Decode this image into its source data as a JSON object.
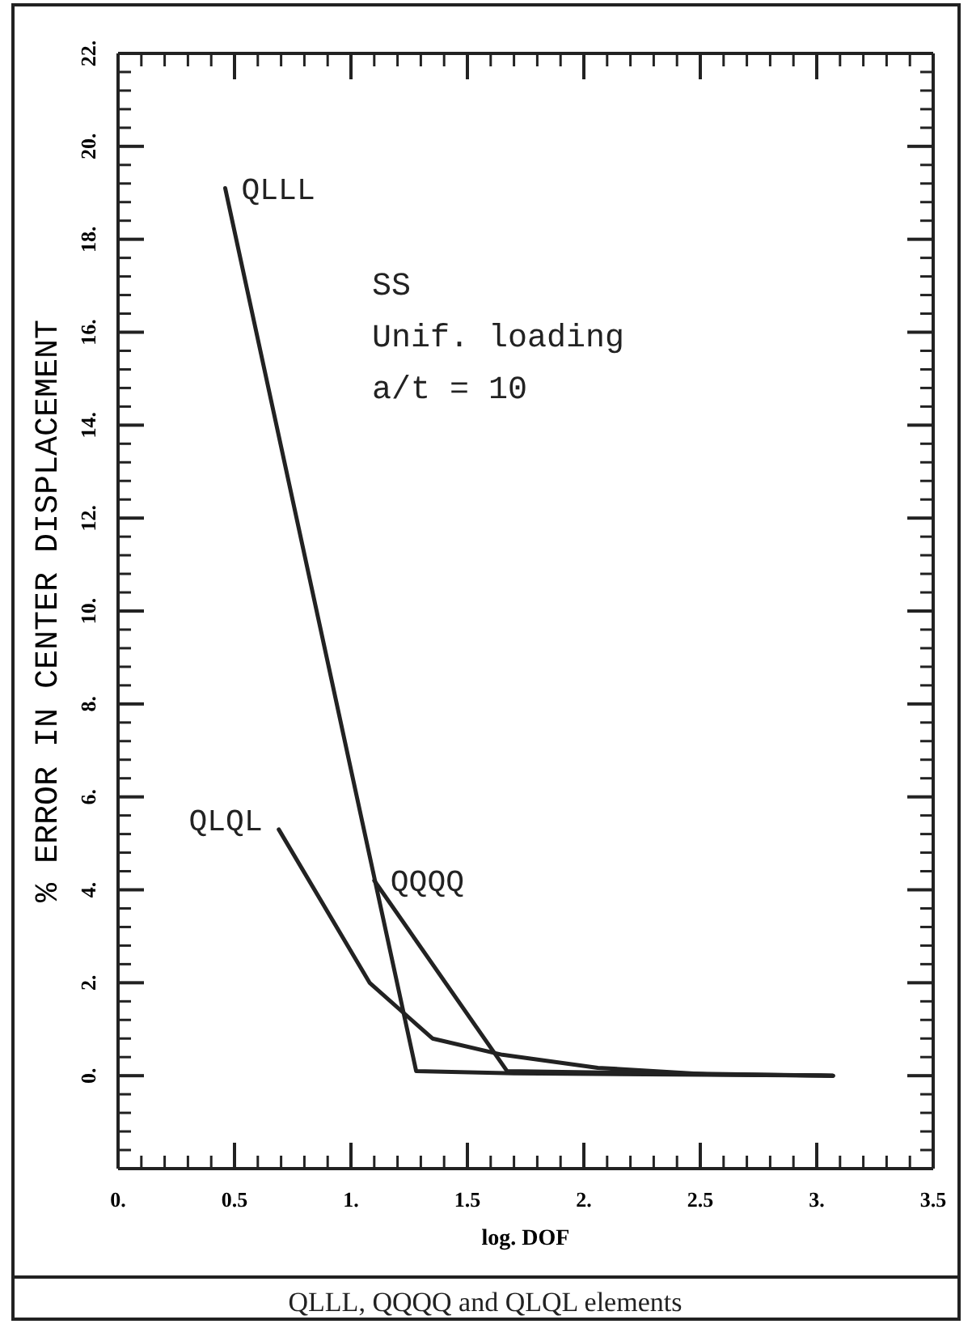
{
  "chart_data": {
    "type": "line",
    "xlabel": "log. DOF",
    "ylabel": "% ERROR IN CENTER DISPLACEMENT",
    "xlim": [
      0,
      3.5
    ],
    "ylim": [
      -2,
      22
    ],
    "xticks": [
      {
        "value": 0,
        "label": "0."
      },
      {
        "value": 0.1,
        "label": null
      },
      {
        "value": 0.2,
        "label": null
      },
      {
        "value": 0.3,
        "label": null
      },
      {
        "value": 0.4,
        "label": null
      },
      0.5,
      {
        "value": 0.6,
        "label": null
      },
      {
        "value": 0.7,
        "label": null
      },
      {
        "value": 0.8,
        "label": null
      },
      {
        "value": 0.9,
        "label": null
      },
      {
        "value": 1,
        "label": "1."
      },
      {
        "value": 1.1,
        "label": null
      },
      {
        "value": 1.2,
        "label": null
      },
      {
        "value": 1.3,
        "label": null
      },
      {
        "value": 1.4,
        "label": null
      },
      1.5,
      {
        "value": 1.6,
        "label": null
      },
      {
        "value": 1.7,
        "label": null
      },
      {
        "value": 1.8,
        "label": null
      },
      {
        "value": 1.9,
        "label": null
      },
      {
        "value": 2,
        "label": "2."
      },
      {
        "value": 2.1,
        "label": null
      },
      {
        "value": 2.2,
        "label": null
      },
      {
        "value": 2.3,
        "label": null
      },
      {
        "value": 2.4,
        "label": null
      },
      2.5,
      {
        "value": 2.6,
        "label": null
      },
      {
        "value": 2.7,
        "label": null
      },
      {
        "value": 2.8,
        "label": null
      },
      {
        "value": 2.9,
        "label": null
      },
      {
        "value": 3,
        "label": "3."
      },
      {
        "value": 3.1,
        "label": null
      },
      {
        "value": 3.2,
        "label": null
      },
      {
        "value": 3.3,
        "label": null
      },
      {
        "value": 3.4,
        "label": null
      },
      3.5
    ],
    "yticks": [
      {
        "value": -2,
        "label": null
      },
      {
        "value": -1.6,
        "label": null
      },
      {
        "value": -1.2,
        "label": null
      },
      {
        "value": -0.8,
        "label": null
      },
      {
        "value": -0.4,
        "label": null
      },
      {
        "value": 0,
        "label": "0."
      },
      {
        "value": 0.4,
        "label": null
      },
      {
        "value": 0.8,
        "label": null
      },
      {
        "value": 1.2,
        "label": null
      },
      {
        "value": 1.6,
        "label": null
      },
      {
        "value": 2,
        "label": "2."
      },
      {
        "value": 2.4,
        "label": null
      },
      {
        "value": 2.8,
        "label": null
      },
      {
        "value": 3.2,
        "label": null
      },
      {
        "value": 3.6,
        "label": null
      },
      {
        "value": 4,
        "label": "4."
      },
      {
        "value": 4.4,
        "label": null
      },
      {
        "value": 4.8,
        "label": null
      },
      {
        "value": 5.2,
        "label": null
      },
      {
        "value": 5.6,
        "label": null
      },
      {
        "value": 6,
        "label": "6."
      },
      {
        "value": 6.4,
        "label": null
      },
      {
        "value": 6.8,
        "label": null
      },
      {
        "value": 7.2,
        "label": null
      },
      {
        "value": 7.6,
        "label": null
      },
      {
        "value": 8,
        "label": "8."
      },
      {
        "value": 8.4,
        "label": null
      },
      {
        "value": 8.8,
        "label": null
      },
      {
        "value": 9.2,
        "label": null
      },
      {
        "value": 9.6,
        "label": null
      },
      {
        "value": 10,
        "label": "10."
      },
      {
        "value": 10.4,
        "label": null
      },
      {
        "value": 10.8,
        "label": null
      },
      {
        "value": 11.2,
        "label": null
      },
      {
        "value": 11.6,
        "label": null
      },
      {
        "value": 12,
        "label": "12."
      },
      {
        "value": 12.4,
        "label": null
      },
      {
        "value": 12.8,
        "label": null
      },
      {
        "value": 13.2,
        "label": null
      },
      {
        "value": 13.6,
        "label": null
      },
      {
        "value": 14,
        "label": "14."
      },
      {
        "value": 14.4,
        "label": null
      },
      {
        "value": 14.8,
        "label": null
      },
      {
        "value": 15.2,
        "label": null
      },
      {
        "value": 15.6,
        "label": null
      },
      {
        "value": 16,
        "label": "16."
      },
      {
        "value": 16.4,
        "label": null
      },
      {
        "value": 16.8,
        "label": null
      },
      {
        "value": 17.2,
        "label": null
      },
      {
        "value": 17.6,
        "label": null
      },
      {
        "value": 18,
        "label": "18."
      },
      {
        "value": 18.4,
        "label": null
      },
      {
        "value": 18.8,
        "label": null
      },
      {
        "value": 19.2,
        "label": null
      },
      {
        "value": 19.6,
        "label": null
      },
      {
        "value": 20,
        "label": "20."
      },
      {
        "value": 20.4,
        "label": null
      },
      {
        "value": 20.8,
        "label": null
      },
      {
        "value": 21.2,
        "label": null
      },
      {
        "value": 21.6,
        "label": null
      },
      {
        "value": 22,
        "label": "22."
      }
    ],
    "grid": false,
    "marker": "none",
    "line_style": "solid",
    "series": [
      {
        "name": "QLLL",
        "color": "#222222",
        "x": [
          0.46,
          1.28,
          1.7,
          3.07
        ],
        "values": [
          19.1,
          0.1,
          0.05,
          0
        ]
      },
      {
        "name": "QLQL",
        "color": "#222222",
        "x": [
          0.69,
          1.08,
          1.35,
          1.65,
          2.06,
          2.53,
          3.07
        ],
        "values": [
          5.3,
          2.0,
          0.8,
          0.45,
          0.17,
          0.03,
          0
        ]
      },
      {
        "name": "QQQQ",
        "color": "#222222",
        "x": [
          1.1,
          1.67,
          3.07
        ],
        "values": [
          4.2,
          0.1,
          0
        ]
      }
    ],
    "annotations": [
      "SS",
      "Unif. loading",
      "a/t = 10",
      "QLLL, QQQQ and QLQL elements"
    ]
  }
}
